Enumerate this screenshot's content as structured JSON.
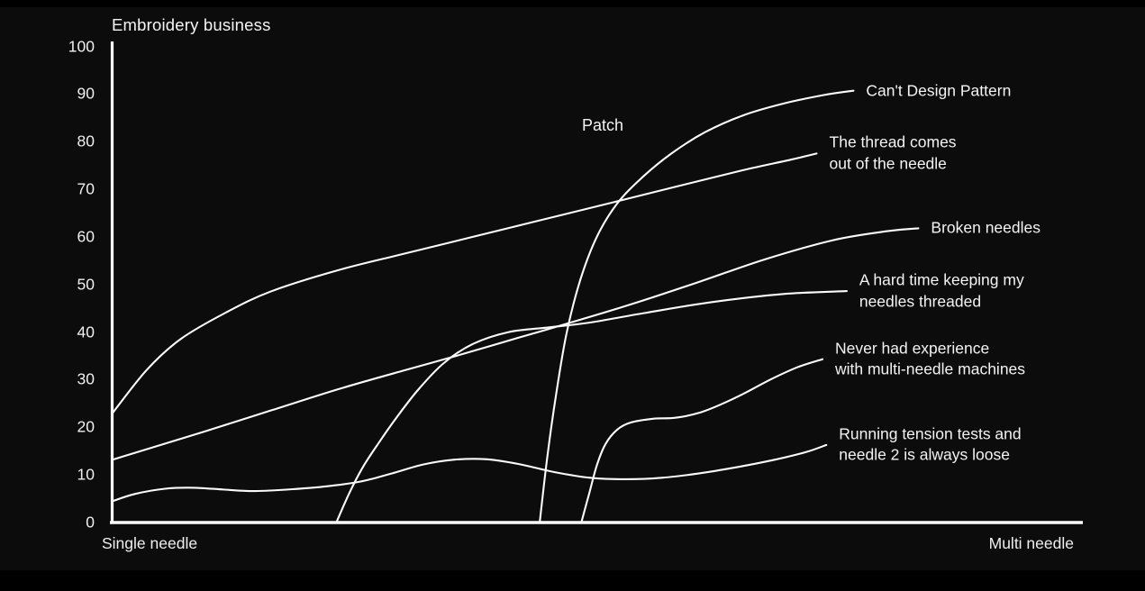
{
  "colors": {
    "background": "#0c0c0c",
    "frame_bars": "#000000",
    "line": "#fbfbfb",
    "axis": "#fcfcfc",
    "text": "#f2f2f2"
  },
  "chart_data": {
    "type": "line",
    "title": "Embroidery business",
    "grid": false,
    "legend_position": "right-end-labels",
    "annotation": "Patch",
    "x_axis": {
      "left_label": "Single needle",
      "right_label": "Multi needle",
      "domain": [
        0,
        1
      ]
    },
    "y_axis": {
      "min": 0,
      "max": 100,
      "ticks": [
        0,
        10,
        20,
        30,
        40,
        50,
        60,
        70,
        80,
        90,
        100
      ]
    },
    "series": [
      {
        "id": "cant-design-pattern",
        "name": "Can't Design Pattern",
        "label_lines": [
          "Can't Design Pattern"
        ],
        "points": [
          [
            0.441,
            0
          ],
          [
            0.449,
            14
          ],
          [
            0.458,
            27
          ],
          [
            0.469,
            40
          ],
          [
            0.483,
            51
          ],
          [
            0.5,
            60
          ],
          [
            0.521,
            67
          ],
          [
            0.547,
            72.5
          ],
          [
            0.577,
            77.5
          ],
          [
            0.612,
            82
          ],
          [
            0.651,
            85.5
          ],
          [
            0.693,
            88
          ],
          [
            0.735,
            89.8
          ],
          [
            0.765,
            90.7
          ]
        ]
      },
      {
        "id": "thread-comes-out",
        "name": "The thread comes out of the needle",
        "label_lines": [
          "The thread comes",
          "out of the needle"
        ],
        "points": [
          [
            0,
            23
          ],
          [
            0.035,
            32
          ],
          [
            0.07,
            38.5
          ],
          [
            0.116,
            44
          ],
          [
            0.163,
            48.5
          ],
          [
            0.233,
            53
          ],
          [
            0.302,
            56.5
          ],
          [
            0.372,
            60
          ],
          [
            0.442,
            63.5
          ],
          [
            0.512,
            67
          ],
          [
            0.581,
            70.5
          ],
          [
            0.651,
            74
          ],
          [
            0.7,
            76.2
          ],
          [
            0.727,
            77.5
          ]
        ]
      },
      {
        "id": "broken-needles",
        "name": "Broken needles",
        "label_lines": [
          "Broken needles"
        ],
        "points": [
          [
            0,
            13.2
          ],
          [
            0.093,
            19
          ],
          [
            0.163,
            23.5
          ],
          [
            0.233,
            28
          ],
          [
            0.302,
            32
          ],
          [
            0.355,
            35
          ],
          [
            0.419,
            38.8
          ],
          [
            0.473,
            42
          ],
          [
            0.535,
            45.8
          ],
          [
            0.605,
            50.5
          ],
          [
            0.674,
            55.3
          ],
          [
            0.744,
            59.3
          ],
          [
            0.8,
            61.2
          ],
          [
            0.832,
            61.8
          ]
        ]
      },
      {
        "id": "hard-time-threading",
        "name": "A hard time keeping my needles threaded",
        "label_lines": [
          "A hard time keeping my",
          "needles threaded"
        ],
        "points": [
          [
            0.231,
            0
          ],
          [
            0.244,
            6
          ],
          [
            0.258,
            11.5
          ],
          [
            0.274,
            16.5
          ],
          [
            0.293,
            22
          ],
          [
            0.316,
            28
          ],
          [
            0.342,
            33.5
          ],
          [
            0.372,
            37.5
          ],
          [
            0.409,
            40
          ],
          [
            0.451,
            41
          ],
          [
            0.493,
            42
          ],
          [
            0.549,
            44
          ],
          [
            0.619,
            46.3
          ],
          [
            0.693,
            48
          ],
          [
            0.758,
            48.6
          ]
        ]
      },
      {
        "id": "never-had-experience",
        "name": "Never had experience with multi-needle machines",
        "label_lines": [
          "Never had experience",
          "with multi-needle machines"
        ],
        "points": [
          [
            0.484,
            0
          ],
          [
            0.492,
            6
          ],
          [
            0.5,
            12
          ],
          [
            0.509,
            16.5
          ],
          [
            0.521,
            19.5
          ],
          [
            0.535,
            21
          ],
          [
            0.558,
            21.8
          ],
          [
            0.581,
            22
          ],
          [
            0.605,
            23
          ],
          [
            0.628,
            24.8
          ],
          [
            0.651,
            27
          ],
          [
            0.679,
            30
          ],
          [
            0.707,
            32.6
          ],
          [
            0.733,
            34.3
          ]
        ]
      },
      {
        "id": "running-tension-tests",
        "name": "Running tension tests and needle 2 is always loose",
        "label_lines": [
          "Running tension tests and",
          "needle 2 is always loose"
        ],
        "points": [
          [
            0,
            4.5
          ],
          [
            0.023,
            6
          ],
          [
            0.054,
            7.1
          ],
          [
            0.084,
            7.3
          ],
          [
            0.116,
            6.9
          ],
          [
            0.147,
            6.6
          ],
          [
            0.186,
            7
          ],
          [
            0.221,
            7.6
          ],
          [
            0.256,
            8.6
          ],
          [
            0.288,
            10.3
          ],
          [
            0.321,
            12.2
          ],
          [
            0.353,
            13.2
          ],
          [
            0.385,
            13.3
          ],
          [
            0.419,
            12.3
          ],
          [
            0.456,
            10.6
          ],
          [
            0.493,
            9.4
          ],
          [
            0.53,
            9.1
          ],
          [
            0.567,
            9.4
          ],
          [
            0.605,
            10.3
          ],
          [
            0.644,
            11.6
          ],
          [
            0.684,
            13.2
          ],
          [
            0.716,
            14.8
          ],
          [
            0.737,
            16.3
          ]
        ]
      }
    ]
  }
}
